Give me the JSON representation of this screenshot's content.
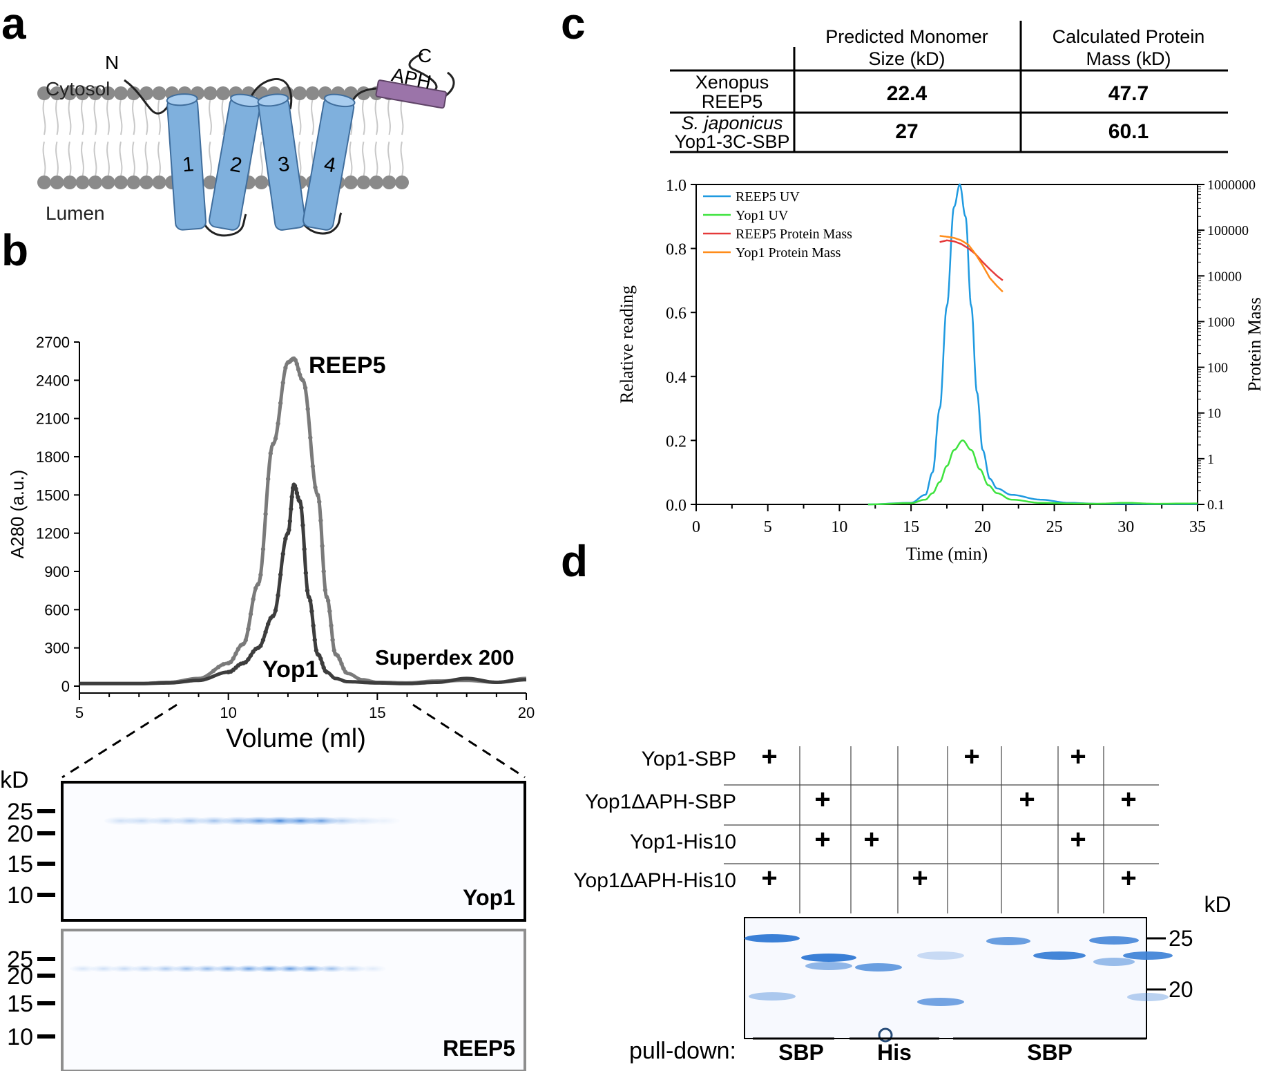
{
  "panels": {
    "a": "a",
    "b": "b",
    "c": "c",
    "d": "d"
  },
  "panel_a": {
    "cytosol": "Cytosol",
    "lumen": "Lumen",
    "n_term": "N",
    "c_term": "C",
    "aph": "APH",
    "helices": [
      "1",
      "2",
      "3",
      "4"
    ],
    "colors": {
      "helix": "#7fb0dd",
      "aph": "#9b74a9",
      "lipid_head": "#8a8a8a",
      "lipid_tail": "#c8c8c8"
    }
  },
  "panel_b": {
    "peak_labels": {
      "reep5": "REEP5",
      "yop1": "Yop1",
      "column": "Superdex 200"
    },
    "gel": {
      "kd_label": "kD",
      "markers": [
        "25",
        "20",
        "15",
        "10"
      ],
      "gel1_label": "Yop1",
      "gel2_label": "REEP5"
    }
  },
  "panel_c": {
    "table": {
      "headers": [
        "Predicted Monomer Size (kD)",
        "Calculated Protein Mass (kD)"
      ],
      "rows": [
        {
          "name_line1": "Xenopus",
          "name_line2": "REEP5",
          "monomer": "22.4",
          "mass": "47.7"
        },
        {
          "name_line1": "S. japonicus",
          "name_line2": "Yop1-3C-SBP",
          "monomer": "27",
          "mass": "60.1"
        }
      ]
    }
  },
  "panel_d": {
    "row_labels": [
      "Yop1-SBP",
      "Yop1ΔAPH-SBP",
      "Yop1-His10",
      "Yop1ΔAPH-His10"
    ],
    "plus": "+",
    "kd_label": "kD",
    "markers": [
      "25",
      "20"
    ],
    "pulldown_label": "pull-down:",
    "groups": [
      "SBP",
      "His",
      "SBP"
    ],
    "matrix": [
      [
        1,
        0,
        0,
        0,
        1,
        0,
        1,
        0
      ],
      [
        0,
        1,
        0,
        0,
        0,
        1,
        0,
        1
      ],
      [
        0,
        1,
        1,
        0,
        0,
        0,
        1,
        0
      ],
      [
        1,
        0,
        0,
        1,
        0,
        0,
        0,
        1
      ]
    ]
  },
  "chart_data": [
    {
      "type": "line",
      "title": "",
      "xlabel": "Volume (ml)",
      "ylabel": "A280 (a.u.)",
      "xlim": [
        5,
        20
      ],
      "ylim": [
        0,
        2700
      ],
      "xticks": [
        5,
        10,
        15,
        20
      ],
      "yticks": [
        0,
        300,
        600,
        900,
        1200,
        1500,
        1800,
        2100,
        2400,
        2700
      ],
      "series": [
        {
          "name": "REEP5",
          "color": "#7a7a7a",
          "x": [
            5,
            7,
            8,
            9,
            10,
            10.5,
            11,
            11.5,
            12,
            12.2,
            12.5,
            13,
            13.3,
            13.6,
            14,
            14.5,
            15,
            16,
            17,
            18,
            19,
            20
          ],
          "y": [
            20,
            20,
            30,
            60,
            180,
            330,
            800,
            1900,
            2540,
            2570,
            2400,
            1500,
            700,
            250,
            100,
            50,
            30,
            25,
            40,
            45,
            30,
            60
          ]
        },
        {
          "name": "Yop1",
          "color": "#3d3d3d",
          "x": [
            5,
            7,
            8,
            9,
            10,
            10.5,
            11,
            11.5,
            12,
            12.2,
            12.4,
            12.7,
            13,
            13.3,
            13.6,
            14,
            15,
            16,
            17,
            18,
            19,
            20
          ],
          "y": [
            20,
            20,
            25,
            45,
            110,
            180,
            300,
            550,
            1200,
            1580,
            1450,
            700,
            250,
            110,
            60,
            35,
            25,
            20,
            30,
            60,
            30,
            50
          ]
        }
      ]
    },
    {
      "type": "line",
      "title": "",
      "xlabel": "Time (min)",
      "ylabel": "Relative reading",
      "y2label": "Protein Mass",
      "xlim": [
        0,
        35
      ],
      "ylim": [
        0,
        1.0
      ],
      "y2lim": [
        0.1,
        1000000
      ],
      "y2scale": "log",
      "xticks": [
        0,
        5,
        10,
        15,
        20,
        25,
        30,
        35
      ],
      "yticks": [
        0.0,
        0.2,
        0.4,
        0.6,
        0.8,
        1.0
      ],
      "y2ticks": [
        0.1,
        1,
        10,
        100,
        1000,
        10000,
        100000,
        1000000
      ],
      "legend": "top-left",
      "series": [
        {
          "name": "REEP5 UV",
          "color": "#1f9ae0",
          "axis": "left",
          "x": [
            12,
            15,
            16,
            16.5,
            17,
            17.5,
            18,
            18.4,
            18.8,
            19.2,
            19.6,
            20,
            20.5,
            21,
            22,
            24,
            26,
            28,
            30,
            32,
            35
          ],
          "y": [
            0,
            0.005,
            0.03,
            0.1,
            0.3,
            0.62,
            0.93,
            1.0,
            0.9,
            0.62,
            0.35,
            0.17,
            0.08,
            0.05,
            0.03,
            0.015,
            0.005,
            0.002,
            0.002,
            0.001,
            0.001
          ]
        },
        {
          "name": "Yop1 UV",
          "color": "#3ee33e",
          "axis": "left",
          "x": [
            12,
            15,
            16,
            16.5,
            17,
            17.5,
            18,
            18.6,
            19.2,
            19.8,
            20.4,
            21,
            22,
            24,
            26,
            28,
            30,
            32,
            35
          ],
          "y": [
            0,
            0.004,
            0.015,
            0.035,
            0.07,
            0.12,
            0.17,
            0.2,
            0.17,
            0.11,
            0.06,
            0.035,
            0.015,
            0.005,
            0.003,
            0.002,
            0.005,
            0.002,
            0.003
          ]
        },
        {
          "name": "REEP5 Protein Mass",
          "color": "#e53a3a",
          "axis": "right",
          "x": [
            17,
            17.5,
            18,
            18.5,
            19,
            19.5,
            20,
            20.5,
            21,
            21.4
          ],
          "y": [
            55000,
            60000,
            57000,
            50000,
            40000,
            30000,
            20000,
            14000,
            10000,
            8000
          ]
        },
        {
          "name": "Yop1 Protein Mass",
          "color": "#ff8c1a",
          "axis": "right",
          "x": [
            17,
            17.5,
            18,
            18.5,
            19,
            19.5,
            20,
            20.5,
            21,
            21.4
          ],
          "y": [
            75000,
            72000,
            68000,
            60000,
            48000,
            30000,
            17000,
            9000,
            6000,
            4500
          ]
        }
      ]
    }
  ]
}
